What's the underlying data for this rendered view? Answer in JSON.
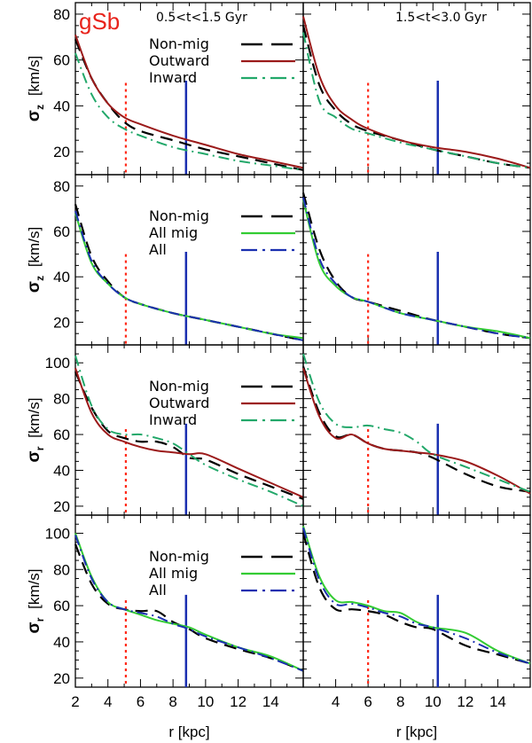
{
  "figure": {
    "model_label": "gSb",
    "time_labels": [
      "0.5<t<1.5 Gyr",
      "1.5<t<3.0 Gyr"
    ],
    "xlabel": "r [kpc]",
    "colors": {
      "nonmig": "#000000",
      "outward": "#9b1a1a",
      "inward": "#22a86a",
      "allmig": "#33cc33",
      "all": "#1a2fb0",
      "red_marker": "#ff2a1a",
      "blue_marker": "#1a2fb0",
      "model_label": "#e8231b"
    }
  },
  "chart_data": [
    {
      "type": "line",
      "row": 0,
      "col": 0,
      "ylabel": "σz [km/s]",
      "ylim": [
        10,
        85
      ],
      "yticks": [
        20,
        40,
        60,
        80
      ],
      "xlim": [
        2,
        16
      ],
      "xticks": [
        2,
        4,
        6,
        8,
        10,
        12,
        14
      ],
      "legend": [
        "Non-mig",
        "Outward",
        "Inward"
      ],
      "markers": {
        "red_dotted_x": 5.1,
        "blue_solid_x": 8.8
      },
      "series": [
        {
          "name": "Non-mig",
          "style": "nonmig",
          "x": [
            2,
            3,
            4,
            5,
            6,
            8,
            10,
            12,
            14,
            16
          ],
          "y": [
            69,
            52,
            41,
            33,
            29,
            25,
            21,
            18,
            15,
            12
          ]
        },
        {
          "name": "Outward",
          "style": "outward",
          "x": [
            2,
            3,
            4,
            5,
            6,
            8,
            10,
            12,
            14,
            16
          ],
          "y": [
            71,
            52,
            41,
            35,
            32,
            27,
            23,
            19,
            16,
            13
          ]
        },
        {
          "name": "Inward",
          "style": "inward",
          "x": [
            2,
            3,
            4,
            5,
            6,
            8,
            10,
            12,
            14,
            16
          ],
          "y": [
            63,
            45,
            35,
            30,
            27,
            22,
            19,
            16,
            14,
            12
          ]
        }
      ]
    },
    {
      "type": "line",
      "row": 0,
      "col": 1,
      "ylabel": "",
      "ylim": [
        10,
        85
      ],
      "yticks": [
        20,
        40,
        60,
        80
      ],
      "xlim": [
        2,
        16
      ],
      "xticks": [
        4,
        6,
        8,
        10,
        12,
        14
      ],
      "markers": {
        "red_dotted_x": 6.0,
        "blue_solid_x": 10.3
      },
      "series": [
        {
          "name": "Non-mig",
          "style": "nonmig",
          "x": [
            2,
            3,
            4,
            5,
            6,
            8,
            10,
            12,
            14,
            16
          ],
          "y": [
            75,
            49,
            38,
            32,
            29,
            25,
            21,
            18,
            15,
            13
          ]
        },
        {
          "name": "Outward",
          "style": "outward",
          "x": [
            2,
            3,
            4,
            5,
            6,
            8,
            10,
            12,
            14,
            16
          ],
          "y": [
            79,
            53,
            40,
            34,
            30,
            25,
            22,
            20,
            17,
            13
          ]
        },
        {
          "name": "Inward",
          "style": "inward",
          "x": [
            2,
            3,
            4,
            5,
            6,
            8,
            10,
            12,
            14,
            16
          ],
          "y": [
            72,
            42,
            35,
            30,
            28,
            24,
            21,
            18,
            15,
            13
          ]
        }
      ]
    },
    {
      "type": "line",
      "row": 1,
      "col": 0,
      "ylabel": "σz [km/s]",
      "ylim": [
        10,
        85
      ],
      "yticks": [
        20,
        40,
        60,
        80
      ],
      "xlim": [
        2,
        16
      ],
      "xticks": [
        2,
        4,
        6,
        8,
        10,
        12,
        14
      ],
      "legend": [
        "Non-mig",
        "All mig",
        "All"
      ],
      "markers": {
        "red_dotted_x": 5.1,
        "blue_solid_x": 8.8
      },
      "series": [
        {
          "name": "Non-mig",
          "style": "nonmig",
          "x": [
            2,
            3,
            4,
            5,
            6,
            8,
            10,
            12,
            14,
            16
          ],
          "y": [
            72,
            49,
            38,
            31,
            28,
            24,
            21,
            18,
            15,
            12
          ]
        },
        {
          "name": "All mig",
          "style": "allmig",
          "x": [
            2,
            3,
            4,
            5,
            6,
            8,
            10,
            12,
            14,
            16
          ],
          "y": [
            68,
            46,
            37,
            31,
            28,
            24,
            21,
            18,
            15,
            13
          ]
        },
        {
          "name": "All",
          "style": "all",
          "x": [
            2,
            3,
            4,
            5,
            6,
            8,
            10,
            12,
            14,
            16
          ],
          "y": [
            69,
            47,
            37,
            31,
            28,
            24,
            21,
            18,
            15,
            12
          ]
        }
      ]
    },
    {
      "type": "line",
      "row": 1,
      "col": 1,
      "ylabel": "",
      "ylim": [
        10,
        85
      ],
      "yticks": [
        20,
        40,
        60,
        80
      ],
      "xlim": [
        2,
        16
      ],
      "xticks": [
        4,
        6,
        8,
        10,
        12,
        14
      ],
      "markers": {
        "red_dotted_x": 6.0,
        "blue_solid_x": 10.3
      },
      "series": [
        {
          "name": "Non-mig",
          "style": "nonmig",
          "x": [
            2,
            3,
            4,
            5,
            6,
            8,
            10,
            12,
            14,
            16
          ],
          "y": [
            77,
            52,
            38,
            31,
            29,
            25,
            21,
            18,
            15,
            13
          ]
        },
        {
          "name": "All mig",
          "style": "allmig",
          "x": [
            2,
            3,
            4,
            5,
            6,
            8,
            10,
            12,
            14,
            16
          ],
          "y": [
            74,
            46,
            36,
            31,
            29,
            24,
            21,
            18,
            16,
            13
          ]
        },
        {
          "name": "All",
          "style": "all",
          "x": [
            2,
            3,
            4,
            5,
            6,
            8,
            10,
            12,
            14,
            16
          ],
          "y": [
            75,
            48,
            37,
            31,
            29,
            24,
            21,
            18,
            15,
            13
          ]
        }
      ]
    },
    {
      "type": "line",
      "row": 2,
      "col": 0,
      "ylabel": "σr [km/s]",
      "ylim": [
        15,
        110
      ],
      "yticks": [
        20,
        40,
        60,
        80,
        100
      ],
      "xlim": [
        2,
        16
      ],
      "xticks": [
        2,
        4,
        6,
        8,
        10,
        12,
        14
      ],
      "legend": [
        "Non-mig",
        "Outward",
        "Inward"
      ],
      "markers": {
        "red_dotted_x": 5.1,
        "blue_solid_x": 8.8
      },
      "series": [
        {
          "name": "Non-mig",
          "style": "nonmig",
          "x": [
            2,
            3,
            4,
            5,
            6,
            7,
            8,
            9,
            10,
            12,
            14,
            16
          ],
          "y": [
            95,
            75,
            62,
            58,
            56,
            56,
            53,
            47,
            46,
            38,
            31,
            24
          ]
        },
        {
          "name": "Outward",
          "style": "outward",
          "x": [
            2,
            3,
            4,
            5,
            6,
            7,
            8,
            9,
            10,
            12,
            14,
            16
          ],
          "y": [
            97,
            72,
            60,
            56,
            53,
            51,
            50,
            49,
            49,
            41,
            33,
            25
          ]
        },
        {
          "name": "Inward",
          "style": "inward",
          "x": [
            2,
            3,
            4,
            5,
            6,
            7,
            8,
            9,
            10,
            12,
            14,
            16
          ],
          "y": [
            104,
            76,
            63,
            60,
            60,
            58,
            55,
            49,
            43,
            35,
            28,
            20
          ]
        }
      ]
    },
    {
      "type": "line",
      "row": 2,
      "col": 1,
      "ylabel": "",
      "ylim": [
        15,
        110
      ],
      "yticks": [
        20,
        40,
        60,
        80,
        100
      ],
      "xlim": [
        2,
        16
      ],
      "xticks": [
        4,
        6,
        8,
        10,
        12,
        14
      ],
      "markers": {
        "red_dotted_x": 6.0,
        "blue_solid_x": 10.3
      },
      "series": [
        {
          "name": "Non-mig",
          "style": "nonmig",
          "x": [
            2,
            3,
            4,
            5,
            6,
            7,
            8,
            9,
            10,
            12,
            14,
            16
          ],
          "y": [
            98,
            72,
            59,
            60,
            55,
            52,
            51,
            50,
            47,
            38,
            31,
            28
          ]
        },
        {
          "name": "Outward",
          "style": "outward",
          "x": [
            2,
            3,
            4,
            5,
            6,
            7,
            8,
            9,
            10,
            12,
            14,
            16
          ],
          "y": [
            97,
            70,
            58,
            60,
            55,
            52,
            51,
            50,
            49,
            45,
            37,
            27
          ]
        },
        {
          "name": "Inward",
          "style": "inward",
          "x": [
            2,
            3,
            4,
            5,
            6,
            7,
            8,
            9,
            10,
            12,
            14,
            16
          ],
          "y": [
            105,
            78,
            66,
            64,
            65,
            63,
            61,
            56,
            49,
            42,
            35,
            28
          ]
        }
      ]
    },
    {
      "type": "line",
      "row": 3,
      "col": 0,
      "ylabel": "σr [km/s]",
      "ylim": [
        15,
        110
      ],
      "yticks": [
        20,
        40,
        60,
        80,
        100
      ],
      "xlim": [
        2,
        16
      ],
      "xticks": [
        2,
        4,
        6,
        8,
        10,
        12,
        14
      ],
      "legend": [
        "Non-mig",
        "All mig",
        "All"
      ],
      "markers": {
        "red_dotted_x": 5.1,
        "blue_solid_x": 8.8
      },
      "series": [
        {
          "name": "Non-mig",
          "style": "nonmig",
          "x": [
            2,
            3,
            4,
            5,
            6,
            7,
            8,
            9,
            10,
            12,
            14,
            16
          ],
          "y": [
            94,
            72,
            61,
            58,
            57,
            57,
            51,
            47,
            42,
            36,
            31,
            24
          ]
        },
        {
          "name": "All mig",
          "style": "allmig",
          "x": [
            2,
            3,
            4,
            5,
            6,
            7,
            8,
            9,
            10,
            12,
            14,
            16
          ],
          "y": [
            100,
            76,
            62,
            58,
            55,
            52,
            50,
            48,
            44,
            37,
            32,
            24
          ]
        },
        {
          "name": "All",
          "style": "all",
          "x": [
            2,
            3,
            4,
            5,
            6,
            7,
            8,
            9,
            10,
            12,
            14,
            16
          ],
          "y": [
            99,
            75,
            62,
            58,
            56,
            54,
            50,
            47,
            43,
            37,
            31,
            24
          ]
        }
      ]
    },
    {
      "type": "line",
      "row": 3,
      "col": 1,
      "ylabel": "",
      "ylim": [
        15,
        110
      ],
      "yticks": [
        20,
        40,
        60,
        80,
        100
      ],
      "xlim": [
        2,
        16
      ],
      "xticks": [
        4,
        6,
        8,
        10,
        12,
        14
      ],
      "markers": {
        "red_dotted_x": 6.0,
        "blue_solid_x": 10.3
      },
      "series": [
        {
          "name": "Non-mig",
          "style": "nonmig",
          "x": [
            2,
            3,
            4,
            5,
            6,
            7,
            8,
            9,
            10,
            12,
            14,
            16
          ],
          "y": [
            100,
            70,
            58,
            58,
            57,
            55,
            51,
            48,
            47,
            38,
            33,
            28
          ]
        },
        {
          "name": "All mig",
          "style": "allmig",
          "x": [
            2,
            3,
            4,
            5,
            6,
            7,
            8,
            9,
            10,
            12,
            14,
            16
          ],
          "y": [
            104,
            76,
            63,
            62,
            60,
            57,
            56,
            51,
            48,
            45,
            35,
            28
          ]
        },
        {
          "name": "All",
          "style": "all",
          "x": [
            2,
            3,
            4,
            5,
            6,
            7,
            8,
            9,
            10,
            12,
            14,
            16
          ],
          "y": [
            103,
            74,
            61,
            61,
            59,
            56,
            54,
            50,
            48,
            42,
            34,
            28
          ]
        }
      ]
    }
  ]
}
